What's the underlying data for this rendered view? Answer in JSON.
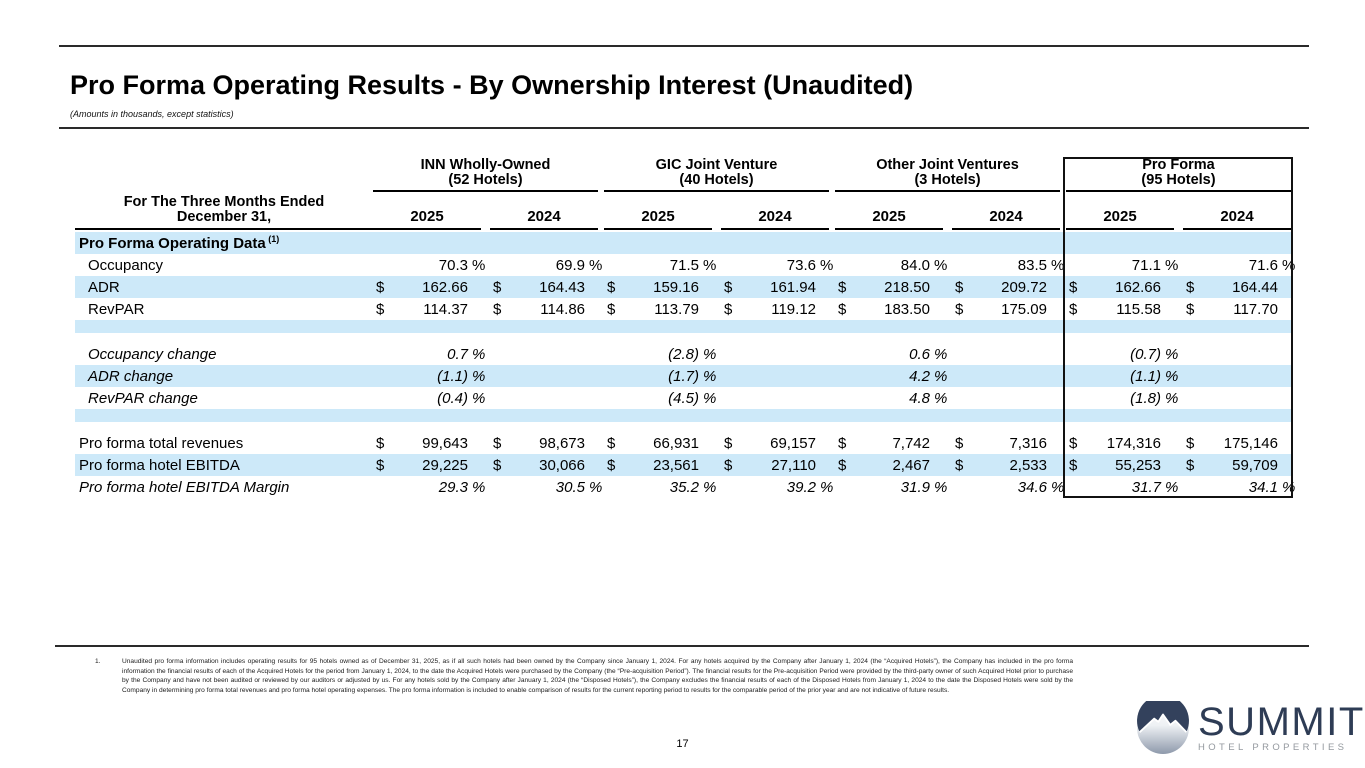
{
  "page": {
    "title": "Pro Forma Operating Results - By Ownership Interest (Unaudited)",
    "subtitle": "(Amounts in thousands, except statistics)",
    "page_number": "17"
  },
  "colors": {
    "stripe": "#cde9f9",
    "logo_navy": "#33415c",
    "logo_gray": "#94999f"
  },
  "symbols": {
    "currency": "$",
    "percent": "%"
  },
  "table": {
    "row_header_line1": "For The Three Months Ended",
    "row_header_line2": "December 31,",
    "groups": [
      {
        "name": "INN Wholly-Owned",
        "hotels": "(52 Hotels)",
        "years": [
          "2025",
          "2024"
        ]
      },
      {
        "name": "GIC Joint Venture",
        "hotels": "(40 Hotels)",
        "years": [
          "2025",
          "2024"
        ]
      },
      {
        "name": "Other Joint Ventures",
        "hotels": "(3 Hotels)",
        "years": [
          "2025",
          "2024"
        ]
      },
      {
        "name": "Pro Forma",
        "hotels": "(95 Hotels)",
        "years": [
          "2025",
          "2024"
        ]
      }
    ],
    "rows": [
      {
        "type": "section",
        "label": "Pro Forma Operating Data",
        "ref": "(1)",
        "shade": true
      },
      {
        "type": "pct",
        "label": "Occupancy",
        "indent": true,
        "shade": false,
        "values": [
          "70.3",
          "69.9",
          "71.5",
          "73.6",
          "84.0",
          "83.5",
          "71.1",
          "71.6"
        ]
      },
      {
        "type": "money",
        "label": "ADR",
        "indent": true,
        "shade": true,
        "values": [
          "162.66",
          "164.43",
          "159.16",
          "161.94",
          "218.50",
          "209.72",
          "162.66",
          "164.44"
        ]
      },
      {
        "type": "money",
        "label": "RevPAR",
        "indent": true,
        "shade": false,
        "values": [
          "114.37",
          "114.86",
          "113.79",
          "119.12",
          "183.50",
          "175.09",
          "115.58",
          "117.70"
        ]
      },
      {
        "type": "spacer",
        "shade": true
      },
      {
        "type": "pct2025",
        "label": "Occupancy change",
        "indent": true,
        "italic": true,
        "shade": false,
        "values": [
          "0.7",
          "(2.8)",
          "0.6",
          "(0.7)"
        ]
      },
      {
        "type": "pct2025",
        "label": "ADR change",
        "indent": true,
        "italic": true,
        "shade": true,
        "values": [
          "(1.1)",
          "(1.7)",
          "4.2",
          "(1.1)"
        ]
      },
      {
        "type": "pct2025",
        "label": "RevPAR change",
        "indent": true,
        "italic": true,
        "shade": false,
        "values": [
          "(0.4)",
          "(4.5)",
          "4.8",
          "(1.8)"
        ]
      },
      {
        "type": "spacer",
        "shade": true
      },
      {
        "type": "money",
        "label": "Pro forma total revenues",
        "shade": false,
        "values": [
          "99,643",
          "98,673",
          "66,931",
          "69,157",
          "7,742",
          "7,316",
          "174,316",
          "175,146"
        ]
      },
      {
        "type": "money",
        "label": "Pro forma hotel EBITDA",
        "shade": true,
        "values": [
          "29,225",
          "30,066",
          "23,561",
          "27,110",
          "2,467",
          "2,533",
          "55,253",
          "59,709"
        ]
      },
      {
        "type": "pct",
        "label": "Pro forma hotel EBITDA Margin",
        "italic": true,
        "shade": false,
        "values": [
          "29.3",
          "30.5",
          "35.2",
          "39.2",
          "31.9",
          "34.6",
          "31.7",
          "34.1"
        ]
      }
    ]
  },
  "footnote": {
    "number": "1.",
    "text": "Unaudited pro forma information includes operating results for 95 hotels owned as of December 31, 2025, as if all such hotels had been owned by the Company since January 1, 2024. For any hotels acquired by the Company after January 1, 2024 (the “Acquired Hotels”), the Company has included in the pro forma information the financial results of each of the Acquired Hotels for the period from January 1, 2024, to the date the Acquired Hotels were purchased by the Company (the “Pre-acquisition Period”). The financial results for the Pre-acquisition Period were provided by the third-party owner of such Acquired Hotel prior to purchase by the Company and have not been audited or reviewed by our auditors or adjusted by us. For any hotels sold by the Company after January 1, 2024 (the “Disposed Hotels”), the Company excludes the financial results of each of the Disposed Hotels from January 1, 2024 to the date the Disposed Hotels were sold by the Company in determining pro forma total revenues and pro forma hotel operating expenses. The pro forma information is included to enable comparison of results for the current reporting period to results for the comparable period of the prior year and are not indicative of future results."
  },
  "logo": {
    "icon": "mountain-in-circle",
    "brand": "SUMMIT",
    "tagline": "HOTEL PROPERTIES"
  }
}
